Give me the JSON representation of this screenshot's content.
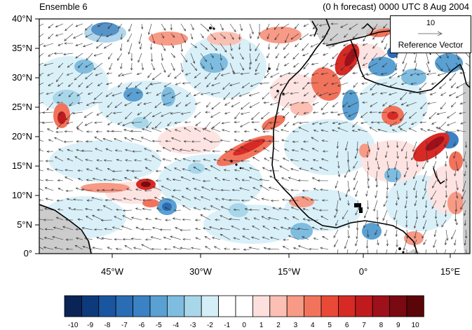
{
  "header": {
    "left_title": "Ensemble 6",
    "right_title": "(0 h forecast) 0000 UTC 8 Aug 2004"
  },
  "map": {
    "lat_labels": [
      "40°N",
      "35°N",
      "30°N",
      "25°N",
      "20°N",
      "15°N",
      "10°N",
      "5°N",
      "0°"
    ],
    "lon_labels": [
      "45°W",
      "30°W",
      "15°W",
      "0°",
      "15°E"
    ],
    "lat_range": [
      0,
      40
    ],
    "lon_range": [
      -58,
      20
    ],
    "land_fill": "#cccccc",
    "coast_color": "#000000"
  },
  "reference_vector": {
    "magnitude": "10",
    "label": "Reference Vector"
  },
  "colorbar": {
    "labels": [
      "-10",
      "-9",
      "-8",
      "-7",
      "-6",
      "-5",
      "-4",
      "-3",
      "-2",
      "-1",
      "0",
      "1",
      "2",
      "3",
      "4",
      "5",
      "6",
      "7",
      "8",
      "9",
      "10"
    ],
    "colors": [
      "#0a2456",
      "#0d3a7a",
      "#1a56a0",
      "#2a6db5",
      "#3b82c4",
      "#5aa0d2",
      "#7fbde0",
      "#a8d7ea",
      "#d4eef7",
      "#ffffff",
      "#ffffff",
      "#fde0dd",
      "#fbc0b3",
      "#f79a86",
      "#f2735c",
      "#e94a37",
      "#d72a25",
      "#bf1b1e",
      "#9e101a",
      "#7a0a12",
      "#5a0508"
    ]
  }
}
